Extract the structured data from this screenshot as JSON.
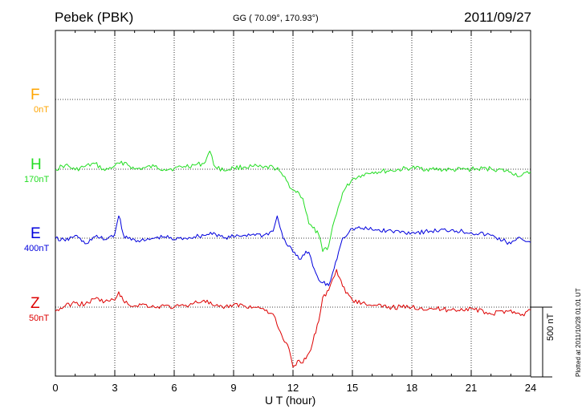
{
  "header": {
    "station": "Pebek (PBK)",
    "coords": "GG ( 70.09°, 170.93°)",
    "date": "2011/09/27"
  },
  "footer": {
    "plotted": "Plotted at 2011/10/28 01:01 UT",
    "scale_bar": "500 nT"
  },
  "colors": {
    "F": "#ffa500",
    "H": "#22dd22",
    "E": "#0000dd",
    "Z": "#dd0000"
  },
  "chart_data": {
    "type": "line",
    "title": "Pebek (PBK)",
    "xlabel": "U T (hour)",
    "ylabel": "",
    "xlim": [
      0,
      24
    ],
    "x_ticks": [
      "0",
      "3",
      "6",
      "9",
      "12",
      "15",
      "18",
      "21",
      "24"
    ],
    "grid": true,
    "scale_bar_nT": 500,
    "channels": [
      {
        "name": "F",
        "baseline_label": "0nT",
        "color": "#ffa500"
      },
      {
        "name": "H",
        "baseline_label": "170nT",
        "color": "#22dd22"
      },
      {
        "name": "E",
        "baseline_label": "400nT",
        "color": "#0000dd"
      },
      {
        "name": "Z",
        "baseline_label": "50nT",
        "color": "#dd0000"
      }
    ],
    "series": [
      {
        "name": "H",
        "baseline_nT": 170,
        "x": [
          0,
          0.5,
          1,
          1.5,
          2,
          2.5,
          3,
          3.5,
          4,
          4.5,
          5,
          5.5,
          6,
          6.5,
          7,
          7.5,
          7.8,
          8,
          8.5,
          9,
          9.5,
          10,
          10.5,
          11,
          11.3,
          11.5,
          12,
          12.3,
          12.5,
          12.8,
          13,
          13.3,
          13.5,
          13.8,
          14,
          14.2,
          14.5,
          15,
          15.5,
          16,
          17,
          18,
          19,
          20,
          21,
          22,
          23,
          23.5,
          24
        ],
        "y": [
          170,
          200,
          165,
          190,
          210,
          160,
          195,
          220,
          170,
          180,
          190,
          170,
          175,
          190,
          200,
          210,
          300,
          200,
          160,
          180,
          185,
          190,
          180,
          185,
          160,
          120,
          20,
          0,
          -40,
          -220,
          -250,
          -300,
          -420,
          -380,
          -240,
          -150,
          0,
          100,
          130,
          150,
          160,
          180,
          170,
          165,
          170,
          175,
          150,
          120,
          150
        ]
      },
      {
        "name": "E",
        "baseline_nT": 400,
        "x": [
          0,
          0.5,
          1,
          1.5,
          2,
          2.5,
          3,
          3.2,
          3.5,
          4,
          4.5,
          5,
          5.5,
          6,
          6.5,
          7,
          7.5,
          8,
          8.5,
          9,
          9.5,
          10,
          10.5,
          11,
          11.2,
          11.5,
          12,
          12.3,
          12.5,
          12.8,
          13,
          13.3,
          13.5,
          13.8,
          14,
          14.3,
          14.5,
          15,
          15.5,
          16,
          17,
          18,
          19,
          20,
          21,
          22,
          23,
          23.5,
          24
        ],
        "y": [
          400,
          380,
          420,
          360,
          410,
          390,
          430,
          560,
          400,
          390,
          380,
          400,
          410,
          390,
          400,
          410,
          420,
          440,
          400,
          410,
          420,
          430,
          420,
          450,
          560,
          400,
          300,
          250,
          280,
          300,
          200,
          100,
          80,
          60,
          150,
          300,
          400,
          470,
          470,
          460,
          450,
          440,
          450,
          460,
          440,
          420,
          360,
          400,
          370
        ]
      },
      {
        "name": "Z",
        "baseline_nT": 50,
        "x": [
          0,
          0.5,
          1,
          1.5,
          2,
          2.5,
          3,
          3.2,
          3.5,
          4,
          4.5,
          5,
          5.5,
          6,
          6.5,
          7,
          7.5,
          8,
          8.5,
          9,
          9.5,
          10,
          10.5,
          11,
          11.2,
          11.5,
          11.8,
          12,
          12.3,
          12.5,
          12.8,
          13,
          13.3,
          13.5,
          13.8,
          14,
          14.2,
          14.5,
          15,
          15.5,
          16,
          17,
          18,
          19,
          20,
          21,
          22,
          23,
          23.5,
          24
        ],
        "y": [
          20,
          60,
          80,
          70,
          110,
          90,
          100,
          160,
          80,
          60,
          70,
          50,
          60,
          50,
          60,
          80,
          100,
          60,
          40,
          70,
          60,
          50,
          40,
          0,
          -80,
          -180,
          -250,
          -380,
          -330,
          -350,
          -280,
          -200,
          -50,
          120,
          170,
          250,
          320,
          200,
          100,
          80,
          60,
          50,
          50,
          40,
          30,
          40,
          0,
          30,
          -10,
          30
        ]
      }
    ]
  }
}
